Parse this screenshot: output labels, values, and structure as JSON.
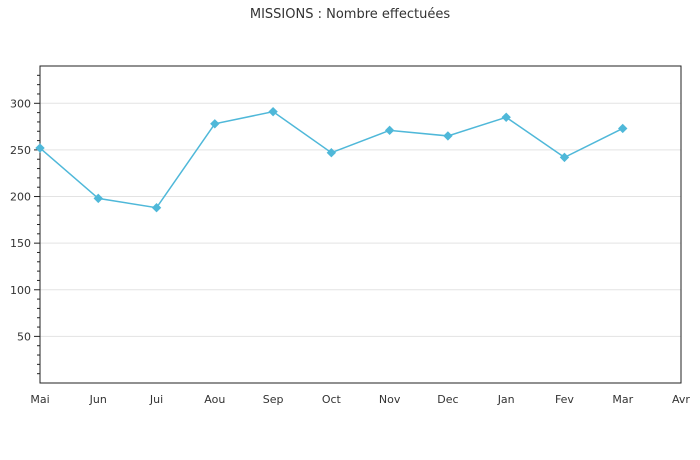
{
  "chart_data": {
    "type": "line",
    "title": "MISSIONS : Nombre effectuées",
    "xlabel": "",
    "ylabel": "",
    "categories": [
      "Mai",
      "Jun",
      "Jui",
      "Aou",
      "Sep",
      "Oct",
      "Nov",
      "Dec",
      "Jan",
      "Fev",
      "Mar",
      "Avr"
    ],
    "series": [
      {
        "values": [
          252,
          198,
          188,
          278,
          291,
          247,
          271,
          265,
          285,
          242,
          273,
          null
        ],
        "color": "#4fb8d9"
      }
    ],
    "ylim": [
      0,
      340
    ],
    "yticks": [
      50,
      100,
      150,
      200,
      250,
      300
    ],
    "ytick_labels": [
      "50",
      "100",
      "150",
      "200",
      "250",
      "300"
    ],
    "grid": true,
    "grid_axis": "y",
    "legend": "none",
    "marker": "diamond"
  }
}
